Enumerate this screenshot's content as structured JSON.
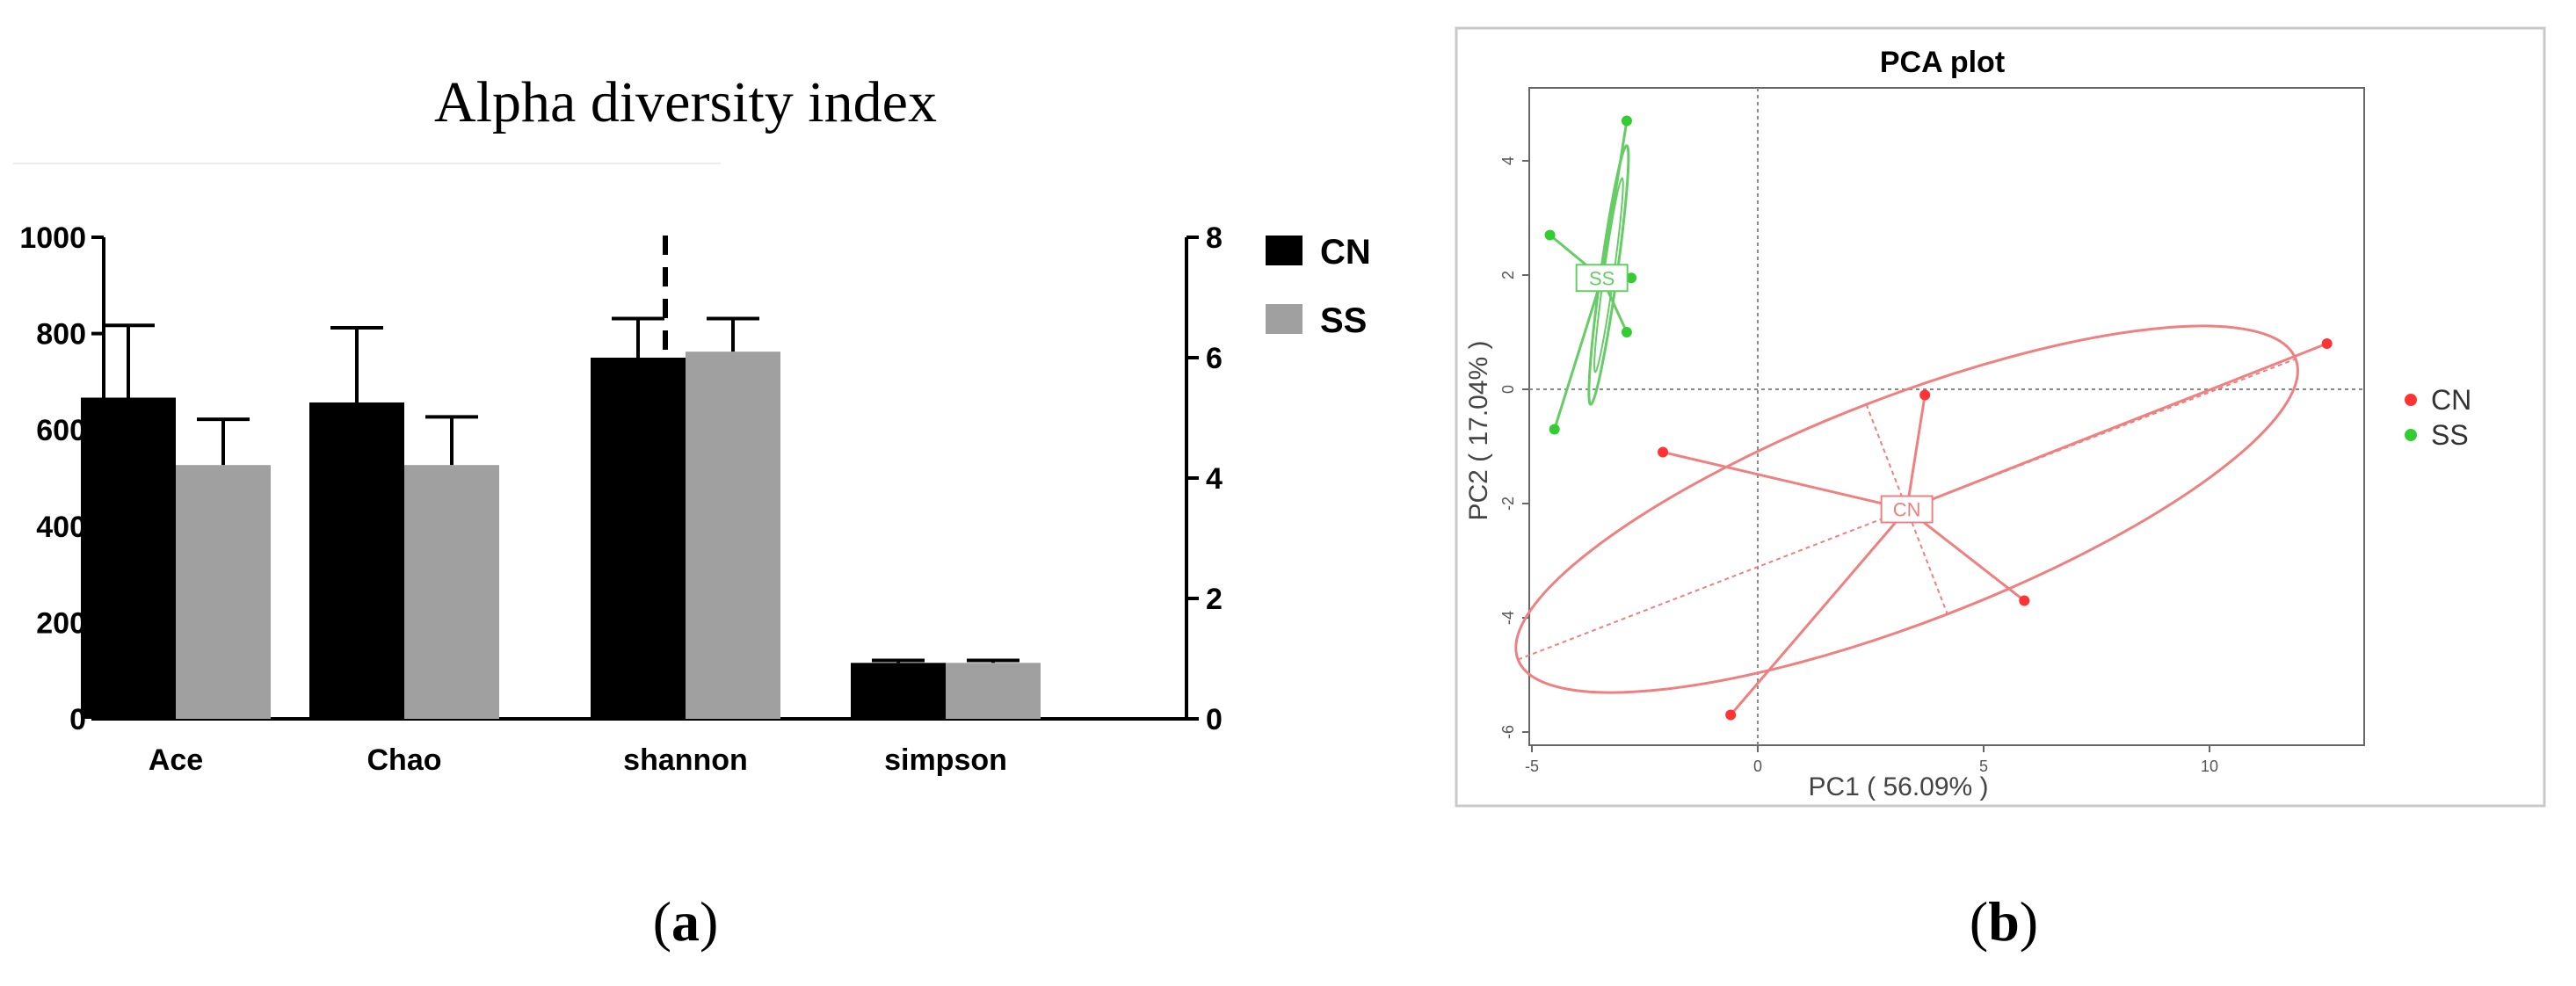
{
  "panel_a": {
    "caption": "(a)",
    "caption_parts": [
      "(",
      "a",
      ")"
    ]
  },
  "panel_b": {
    "caption": "(b)",
    "caption_parts": [
      "(",
      "b",
      ")"
    ]
  },
  "colors": {
    "cn_bar": "#000000",
    "ss_bar": "#a0a0a0",
    "cn_point": "#ff3333",
    "ss_point": "#33cc33",
    "cn_line": "#f08080",
    "ss_line": "#66cc66"
  },
  "chart_data": [
    {
      "type": "bar",
      "title": "Alpha diversity index",
      "categories": [
        "Ace",
        "Chao",
        "shannon",
        "simpson"
      ],
      "series": [
        {
          "name": "CN",
          "values": [
            667,
            657,
            6.0,
            0.93
          ],
          "errors": [
            150,
            155,
            0.65,
            0.04
          ]
        },
        {
          "name": "SS",
          "values": [
            527,
            527,
            6.1,
            0.93
          ],
          "errors": [
            95,
            100,
            0.55,
            0.04
          ]
        }
      ],
      "y_left": {
        "ylim": [
          0,
          1000
        ],
        "ticks": [
          "0",
          "200",
          "400",
          "600",
          "800",
          "1000"
        ],
        "applies_to": [
          "Ace",
          "Chao"
        ]
      },
      "y_right": {
        "ylim": [
          0,
          8
        ],
        "ticks": [
          "0",
          "2",
          "4",
          "6",
          "8"
        ],
        "applies_to": [
          "shannon",
          "simpson"
        ]
      },
      "legend": {
        "entries": [
          "CN",
          "SS"
        ],
        "position": "top-right"
      },
      "grid": false
    },
    {
      "type": "scatter",
      "title": "PCA plot",
      "xlabel": "PC1 ( 56.09% )",
      "ylabel": "PC2 ( 17.04% )",
      "xlim": [
        -5,
        13.5
      ],
      "ylim": [
        -6.2,
        5.5
      ],
      "x_ticks": [
        "-5",
        "0",
        "5",
        "10"
      ],
      "y_ticks": [
        "4",
        "2",
        "0",
        "-2",
        "-4",
        "-6"
      ],
      "series": [
        {
          "name": "CN",
          "centroid": [
            3.3,
            -2.1
          ],
          "centroid_label": "CN",
          "points": [
            [
              -2.1,
              -1.1
            ],
            [
              3.7,
              -0.1
            ],
            [
              12.6,
              0.8
            ],
            [
              5.9,
              -3.7
            ],
            [
              -0.6,
              -5.7
            ]
          ],
          "ellipse": {
            "center": [
              3.3,
              -2.1
            ],
            "semi_major": 9.0,
            "semi_minor": 2.0,
            "angle_deg": 17
          }
        },
        {
          "name": "SS",
          "centroid": [
            -3.45,
            1.95
          ],
          "centroid_label": "SS",
          "points": [
            [
              -2.9,
              4.7
            ],
            [
              -4.6,
              2.7
            ],
            [
              -2.8,
              1.95
            ],
            [
              -2.9,
              1.0
            ],
            [
              -4.5,
              -0.7
            ]
          ],
          "ellipse": {
            "center": [
              -3.3,
              2.0
            ],
            "semi_major": 2.3,
            "semi_minor": 0.18,
            "angle_deg": 80
          }
        }
      ],
      "legend": {
        "entries": [
          "CN",
          "SS"
        ],
        "position": "right"
      },
      "grid": false,
      "reference_lines": {
        "x": 0,
        "y": 0
      }
    }
  ]
}
